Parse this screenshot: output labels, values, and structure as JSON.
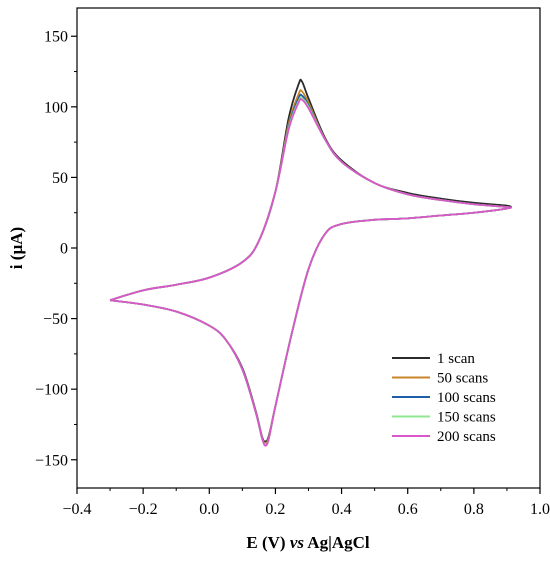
{
  "chart_data": {
    "type": "line",
    "xlabel": {
      "prefix": "E (V) ",
      "italic": "vs",
      "suffix": " Ag|AgCl"
    },
    "ylabel": "i (µA)",
    "xlim": [
      -0.4,
      1.0
    ],
    "ylim": [
      -170,
      170
    ],
    "xticks": [
      -0.4,
      -0.2,
      0.0,
      0.2,
      0.4,
      0.6,
      0.8,
      1.0
    ],
    "xtick_labels": [
      "−0.4",
      "−0.2",
      "0.0",
      "0.2",
      "0.4",
      "0.6",
      "0.8",
      "1.0"
    ],
    "yticks": [
      -150,
      -100,
      -50,
      0,
      50,
      100,
      150
    ],
    "ytick_labels": [
      "−150",
      "−100",
      "−50",
      "0",
      "50",
      "100",
      "150"
    ],
    "grid": false,
    "legend_position": "bottom-right",
    "series": [
      {
        "name": "1 scan",
        "color": "#2b2b2b",
        "x": [
          -0.3,
          -0.2,
          -0.1,
          0.0,
          0.1,
          0.15,
          0.2,
          0.24,
          0.27,
          0.28,
          0.3,
          0.35,
          0.4,
          0.5,
          0.6,
          0.7,
          0.8,
          0.9,
          0.9,
          0.8,
          0.7,
          0.6,
          0.5,
          0.4,
          0.35,
          0.3,
          0.25,
          0.2,
          0.18,
          0.17,
          0.16,
          0.14,
          0.1,
          0.05,
          0.0,
          -0.1,
          -0.2,
          -0.3
        ],
        "y": [
          -37,
          -30,
          -26,
          -21,
          -10,
          5,
          40,
          92,
          116,
          118,
          106,
          78,
          62,
          46,
          39,
          35,
          32,
          30,
          28,
          25,
          23,
          21,
          20,
          17,
          10,
          -15,
          -60,
          -112,
          -133,
          -137,
          -134,
          -115,
          -85,
          -65,
          -55,
          -45,
          -40,
          -37
        ]
      },
      {
        "name": "50 scans",
        "color": "#c8862a",
        "x": [
          -0.3,
          -0.2,
          -0.1,
          0.0,
          0.1,
          0.15,
          0.2,
          0.24,
          0.27,
          0.28,
          0.3,
          0.35,
          0.4,
          0.5,
          0.6,
          0.7,
          0.8,
          0.9,
          0.9,
          0.8,
          0.7,
          0.6,
          0.5,
          0.4,
          0.35,
          0.3,
          0.25,
          0.2,
          0.18,
          0.17,
          0.16,
          0.14,
          0.1,
          0.05,
          0.0,
          -0.1,
          -0.2,
          -0.3
        ],
        "y": [
          -37,
          -30,
          -26,
          -21,
          -10,
          5,
          40,
          88,
          109,
          111,
          103,
          77,
          61,
          46,
          38,
          34,
          31,
          29,
          28,
          25,
          23,
          21,
          20,
          17,
          10,
          -15,
          -60,
          -112,
          -134,
          -138,
          -135,
          -116,
          -86,
          -65,
          -55,
          -45,
          -40,
          -37
        ]
      },
      {
        "name": "100 scans",
        "color": "#1f5fa8",
        "x": [
          -0.3,
          -0.2,
          -0.1,
          0.0,
          0.1,
          0.15,
          0.2,
          0.24,
          0.27,
          0.28,
          0.3,
          0.35,
          0.4,
          0.5,
          0.6,
          0.7,
          0.8,
          0.9,
          0.9,
          0.8,
          0.7,
          0.6,
          0.5,
          0.4,
          0.35,
          0.3,
          0.25,
          0.2,
          0.18,
          0.17,
          0.16,
          0.14,
          0.1,
          0.05,
          0.0,
          -0.1,
          -0.2,
          -0.3
        ],
        "y": [
          -37,
          -30,
          -26,
          -21,
          -10,
          5,
          40,
          86,
          106,
          108,
          101,
          77,
          61,
          46,
          38,
          34,
          31,
          29,
          28,
          25,
          23,
          21,
          20,
          17,
          10,
          -15,
          -60,
          -112,
          -135,
          -139,
          -135,
          -116,
          -86,
          -65,
          -55,
          -45,
          -40,
          -37
        ]
      },
      {
        "name": "150 scans",
        "color": "#8fe88f",
        "x": [
          -0.3,
          -0.2,
          -0.1,
          0.0,
          0.1,
          0.15,
          0.2,
          0.24,
          0.27,
          0.28,
          0.3,
          0.35,
          0.4,
          0.5,
          0.6,
          0.7,
          0.8,
          0.9,
          0.9,
          0.8,
          0.7,
          0.6,
          0.5,
          0.4,
          0.35,
          0.3,
          0.25,
          0.2,
          0.18,
          0.17,
          0.16,
          0.14,
          0.1,
          0.05,
          0.0,
          -0.1,
          -0.2,
          -0.3
        ],
        "y": [
          -37,
          -30,
          -26,
          -21,
          -10,
          5,
          40,
          85,
          104,
          106,
          100,
          77,
          61,
          46,
          38,
          34,
          31,
          29,
          28,
          25,
          23,
          21,
          20,
          17,
          10,
          -15,
          -60,
          -112,
          -135,
          -139,
          -135,
          -116,
          -86,
          -65,
          -55,
          -45,
          -40,
          -37
        ]
      },
      {
        "name": "200 scans",
        "color": "#d957c8",
        "x": [
          -0.3,
          -0.2,
          -0.1,
          0.0,
          0.1,
          0.15,
          0.2,
          0.24,
          0.27,
          0.28,
          0.3,
          0.35,
          0.4,
          0.5,
          0.6,
          0.7,
          0.8,
          0.9,
          0.9,
          0.8,
          0.7,
          0.6,
          0.5,
          0.4,
          0.35,
          0.3,
          0.25,
          0.2,
          0.18,
          0.17,
          0.16,
          0.14,
          0.1,
          0.05,
          0.0,
          -0.1,
          -0.2,
          -0.3
        ],
        "y": [
          -37,
          -30,
          -26,
          -21,
          -10,
          5,
          40,
          84,
          103,
          105,
          99,
          77,
          61,
          46,
          38,
          34,
          31,
          29,
          28,
          25,
          23,
          21,
          20,
          17,
          10,
          -15,
          -60,
          -112,
          -135,
          -140,
          -135,
          -116,
          -86,
          -65,
          -55,
          -45,
          -40,
          -37
        ]
      }
    ]
  }
}
